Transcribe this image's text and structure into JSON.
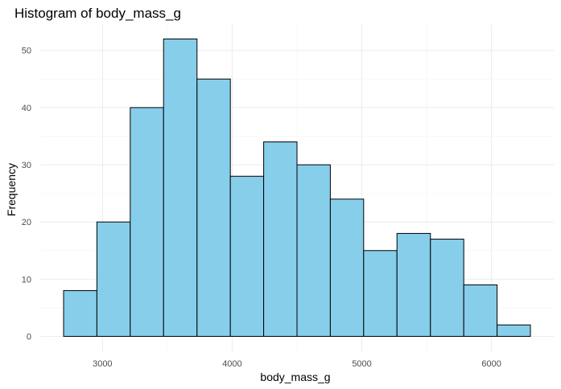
{
  "chart_data": {
    "type": "bar",
    "title": "Histogram of body_mass_g",
    "xlabel": "body_mass_g",
    "ylabel": "Frequency",
    "bin_edges": [
      2700,
      2957,
      3214,
      3471,
      3729,
      3986,
      4243,
      4500,
      4757,
      5014,
      5271,
      5529,
      5786,
      6043,
      6300
    ],
    "values": [
      8,
      20,
      40,
      52,
      45,
      28,
      34,
      30,
      24,
      15,
      18,
      17,
      9,
      2
    ],
    "xlim": [
      2520,
      6480
    ],
    "ylim": [
      -2.6,
      54.6
    ],
    "x_ticks": [
      3000,
      4000,
      5000,
      6000
    ],
    "y_ticks": [
      0,
      10,
      20,
      30,
      40,
      50
    ],
    "colors": {
      "fill": "#87ceeb",
      "outline": "#000000"
    },
    "grid": true,
    "legend": "none"
  }
}
